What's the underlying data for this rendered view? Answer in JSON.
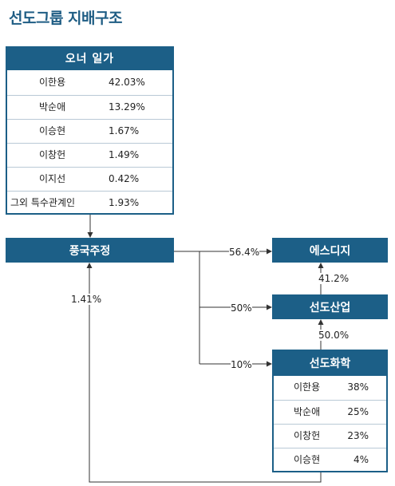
{
  "title": "선도그룹 지배구조",
  "owner_family": {
    "header": "오너 일가",
    "members": [
      {
        "name": "이한용",
        "pct": "42.03%"
      },
      {
        "name": "박순애",
        "pct": "13.29%"
      },
      {
        "name": "이승현",
        "pct": "1.67%"
      },
      {
        "name": "이창헌",
        "pct": "1.49%"
      },
      {
        "name": "이지선",
        "pct": "0.42%"
      },
      {
        "name": "그외 특수관계인",
        "pct": "1.93%"
      }
    ]
  },
  "companies": {
    "pungguk": "풍국주정",
    "esdizi": "에스디지",
    "sundo_industry": "선도산업",
    "sundo_chem": "선도화학"
  },
  "sundo_chem_holders": [
    {
      "name": "이한용",
      "pct": "38%"
    },
    {
      "name": "박순애",
      "pct": "25%"
    },
    {
      "name": "이창헌",
      "pct": "23%"
    },
    {
      "name": "이승현",
      "pct": "4%"
    }
  ],
  "edges": {
    "pungguk_to_esdizi": "56.4%",
    "pungguk_to_sundo_industry": "50%",
    "pungguk_to_sundo_chem": "10%",
    "sundo_industry_to_esdizi": "41.2%",
    "sundo_chem_to_sundo_industry": "50.0%",
    "sundo_chem_to_pungguk": "1.41%"
  },
  "colors": {
    "primary": "#1c5f87",
    "title": "#1f5d84",
    "row_border": "#b9c9d6"
  }
}
